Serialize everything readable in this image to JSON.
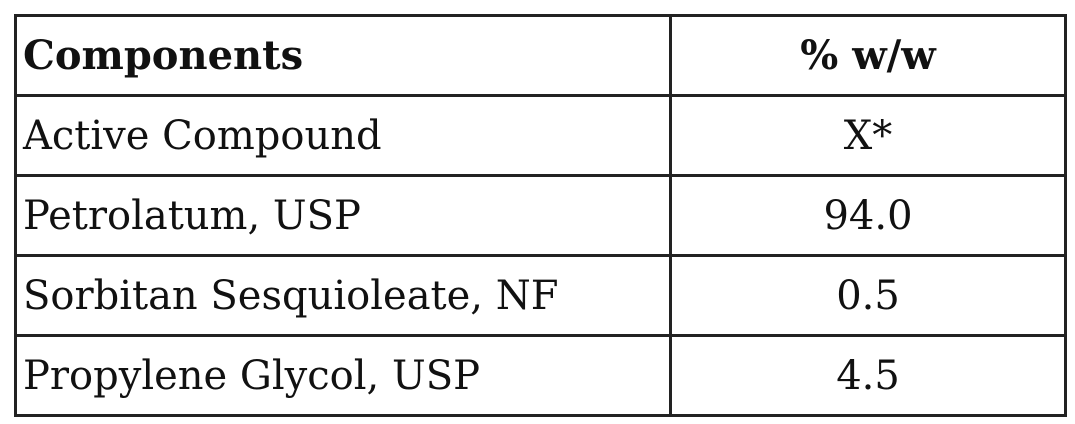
{
  "table": {
    "headers": [
      "Components",
      "% w/w"
    ],
    "rows": [
      [
        "Active Compound",
        "X*"
      ],
      [
        "Petrolatum, USP",
        "94.0"
      ],
      [
        "Sorbitan Sesquioleate, NF",
        "0.5"
      ],
      [
        "Propylene Glycol, USP",
        "4.5"
      ]
    ]
  }
}
